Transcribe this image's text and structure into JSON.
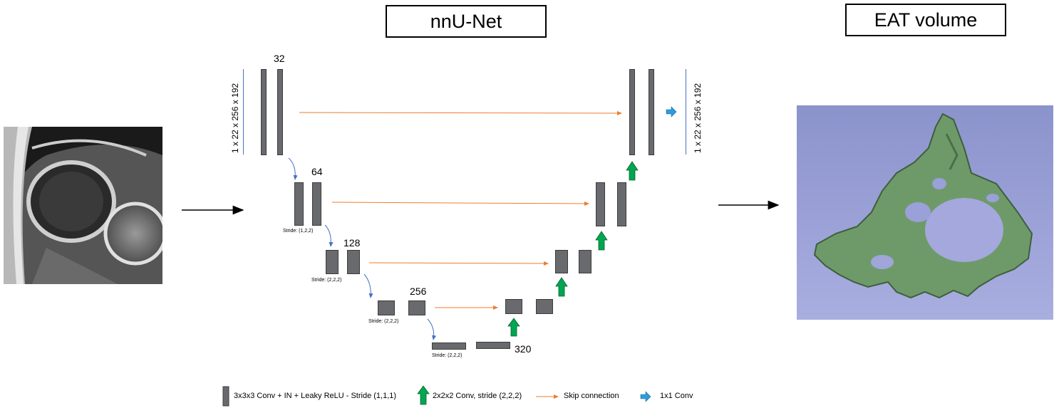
{
  "titles": {
    "network": "nnU-Net",
    "output": "EAT volume"
  },
  "levels": {
    "l0": {
      "channels": "32",
      "dims": "1 x 22 x 256 x 192"
    },
    "l1": {
      "channels": "64",
      "stride": "Stride: (1,2,2)"
    },
    "l2": {
      "channels": "128",
      "stride": "Stride: (2,2,2)"
    },
    "l3": {
      "channels": "256",
      "stride": "Stride: (2,2,2)"
    },
    "l4": {
      "channels": "320",
      "stride": "Stride: (2,2,2)"
    }
  },
  "output_dims": "1 x 22 x 256 x 192",
  "legend": {
    "conv": "3x3x3 Conv + IN + Leaky ReLU - Stride (1,1,1)",
    "upconv": "2x2x2 Conv, stride (2,2,2)",
    "skip": "Skip connection",
    "final": "1x1 Conv"
  },
  "colors": {
    "block": "#696a6e",
    "skip": "#ed7d31",
    "down": "#4472c4",
    "up": "#00a651",
    "final": "#2e9cd8",
    "mesh": "#6e9a6a",
    "panel": "#9aa0d8"
  }
}
